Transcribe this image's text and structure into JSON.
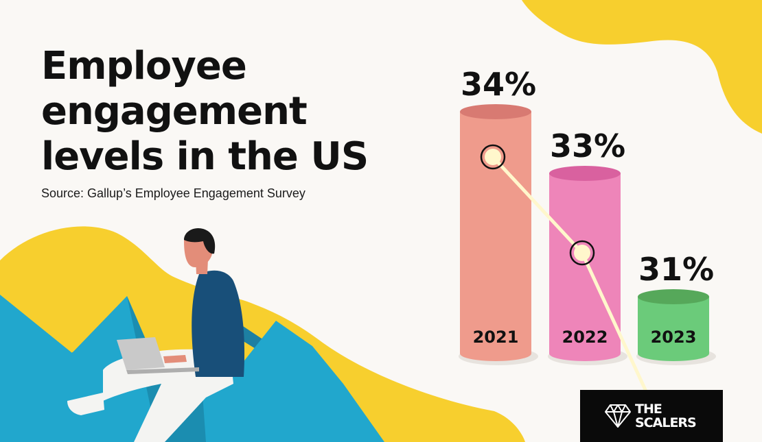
{
  "title": "Employee engagement levels in the US",
  "source": "Source: Gallup’s Employee Engagement Survey",
  "brand": {
    "name": "THE\nSCALERS",
    "mark": "gem-icon"
  },
  "colors": {
    "background": "#faf8f5",
    "accent_yellow": "#f7cf2e",
    "accent_blue": "#21a7cd",
    "bar_2021": "#ef9b8c",
    "bar_2022": "#ee85b9",
    "bar_2023": "#6bcb7a",
    "trend_line": "#fff7cc"
  },
  "chart_data": {
    "type": "bar",
    "categories": [
      "2021",
      "2022",
      "2023"
    ],
    "values": [
      34,
      33,
      31
    ],
    "value_labels": [
      "34%",
      "33%",
      "31%"
    ],
    "unit": "%",
    "title": "Employee engagement levels in the US",
    "subtitle": "Source: Gallup’s Employee Engagement Survey",
    "xlabel": "",
    "ylabel": "",
    "grid": false,
    "legend": "none",
    "overlay": "line"
  }
}
